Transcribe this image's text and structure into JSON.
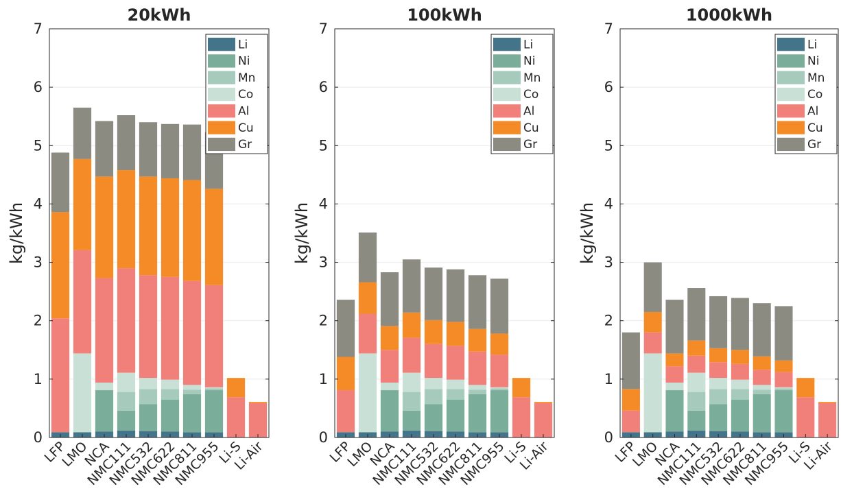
{
  "chart_data": [
    {
      "type": "bar",
      "stacked": true,
      "title": "20kWh",
      "xlabel": "",
      "ylabel": "kg/kWh",
      "ylim": [
        0,
        7
      ],
      "yticks": [
        "0",
        "1",
        "2",
        "3",
        "4",
        "5",
        "6",
        "7"
      ],
      "grid": "horizontal",
      "legend": "top-right",
      "categories": [
        "LFP",
        "LMO",
        "NCA",
        "NMC111",
        "NMC532",
        "NMC622",
        "NMC811",
        "NMC955",
        "Li-S",
        "Li-Air"
      ],
      "series": [
        {
          "name": "Li",
          "values": [
            0.09,
            0.09,
            0.1,
            0.12,
            0.11,
            0.1,
            0.09,
            0.09,
            0,
            0
          ]
        },
        {
          "name": "Ni",
          "values": [
            0,
            0,
            0.71,
            0.34,
            0.46,
            0.55,
            0.65,
            0.72,
            0,
            0
          ]
        },
        {
          "name": "Mn",
          "values": [
            0,
            0,
            0,
            0.32,
            0.26,
            0.18,
            0.08,
            0.03,
            0,
            0
          ]
        },
        {
          "name": "Co",
          "values": [
            0,
            1.35,
            0.13,
            0.33,
            0.19,
            0.16,
            0.08,
            0.02,
            0,
            0
          ]
        },
        {
          "name": "Al",
          "values": [
            1.95,
            1.77,
            1.79,
            1.79,
            1.76,
            1.76,
            1.78,
            1.75,
            0.69,
            0.59
          ]
        },
        {
          "name": "Cu",
          "values": [
            1.82,
            1.56,
            1.74,
            1.68,
            1.69,
            1.69,
            1.73,
            1.65,
            0.33,
            0.02
          ]
        },
        {
          "name": "Gr",
          "values": [
            1.02,
            0.88,
            0.95,
            0.94,
            0.93,
            0.93,
            0.95,
            0.97,
            0,
            0
          ]
        }
      ]
    },
    {
      "type": "bar",
      "stacked": true,
      "title": "100kWh",
      "xlabel": "",
      "ylabel": "kg/kWh",
      "ylim": [
        0,
        7
      ],
      "yticks": [
        "0",
        "1",
        "2",
        "3",
        "4",
        "5",
        "6",
        "7"
      ],
      "grid": "horizontal",
      "legend": "top-right",
      "categories": [
        "LFP",
        "LMO",
        "NCA",
        "NMC111",
        "NMC532",
        "NMC622",
        "NMC811",
        "NMC955",
        "Li-S",
        "Li-Air"
      ],
      "series": [
        {
          "name": "Li",
          "values": [
            0.09,
            0.09,
            0.1,
            0.12,
            0.11,
            0.1,
            0.09,
            0.09,
            0,
            0
          ]
        },
        {
          "name": "Ni",
          "values": [
            0,
            0,
            0.71,
            0.34,
            0.46,
            0.55,
            0.65,
            0.72,
            0,
            0
          ]
        },
        {
          "name": "Mn",
          "values": [
            0,
            0,
            0,
            0.32,
            0.26,
            0.18,
            0.08,
            0.03,
            0,
            0
          ]
        },
        {
          "name": "Co",
          "values": [
            0,
            1.35,
            0.13,
            0.33,
            0.19,
            0.16,
            0.08,
            0.02,
            0,
            0
          ]
        },
        {
          "name": "Al",
          "values": [
            0.72,
            0.68,
            0.56,
            0.6,
            0.58,
            0.58,
            0.57,
            0.56,
            0.69,
            0.59
          ]
        },
        {
          "name": "Cu",
          "values": [
            0.57,
            0.54,
            0.41,
            0.43,
            0.41,
            0.41,
            0.39,
            0.36,
            0.33,
            0.02
          ]
        },
        {
          "name": "Gr",
          "values": [
            0.98,
            0.85,
            0.92,
            0.91,
            0.9,
            0.9,
            0.92,
            0.94,
            0,
            0
          ]
        }
      ]
    },
    {
      "type": "bar",
      "stacked": true,
      "title": "1000kWh",
      "xlabel": "",
      "ylabel": "kg/kWh",
      "ylim": [
        0,
        7
      ],
      "yticks": [
        "0",
        "1",
        "2",
        "3",
        "4",
        "5",
        "6",
        "7"
      ],
      "grid": "horizontal",
      "legend": "top-right",
      "categories": [
        "LFP",
        "LMO",
        "NCA",
        "NMC111",
        "NMC532",
        "NMC622",
        "NMC811",
        "NMC955",
        "Li-S",
        "Li-Air"
      ],
      "series": [
        {
          "name": "Li",
          "values": [
            0.09,
            0.09,
            0.1,
            0.12,
            0.11,
            0.1,
            0.09,
            0.09,
            0,
            0
          ]
        },
        {
          "name": "Ni",
          "values": [
            0,
            0,
            0.71,
            0.34,
            0.46,
            0.55,
            0.65,
            0.72,
            0,
            0
          ]
        },
        {
          "name": "Mn",
          "values": [
            0,
            0,
            0,
            0.32,
            0.26,
            0.18,
            0.08,
            0.03,
            0,
            0
          ]
        },
        {
          "name": "Co",
          "values": [
            0,
            1.35,
            0.13,
            0.33,
            0.19,
            0.16,
            0.08,
            0.02,
            0,
            0
          ]
        },
        {
          "name": "Al",
          "values": [
            0.37,
            0.36,
            0.28,
            0.29,
            0.27,
            0.27,
            0.26,
            0.26,
            0.69,
            0.59
          ]
        },
        {
          "name": "Cu",
          "values": [
            0.37,
            0.35,
            0.22,
            0.26,
            0.24,
            0.24,
            0.23,
            0.2,
            0.33,
            0.02
          ]
        },
        {
          "name": "Gr",
          "values": [
            0.97,
            0.85,
            0.92,
            0.9,
            0.89,
            0.89,
            0.91,
            0.93,
            0,
            0
          ]
        }
      ]
    }
  ],
  "colors": {
    "Li": "#43748a",
    "Ni": "#7aae9b",
    "Mn": "#a6cbbd",
    "Co": "#c9e0d6",
    "Al": "#f1807a",
    "Cu": "#f58b27",
    "Gr": "#8b8b82",
    "grid": "#ebebeb",
    "axis": "#262626"
  }
}
